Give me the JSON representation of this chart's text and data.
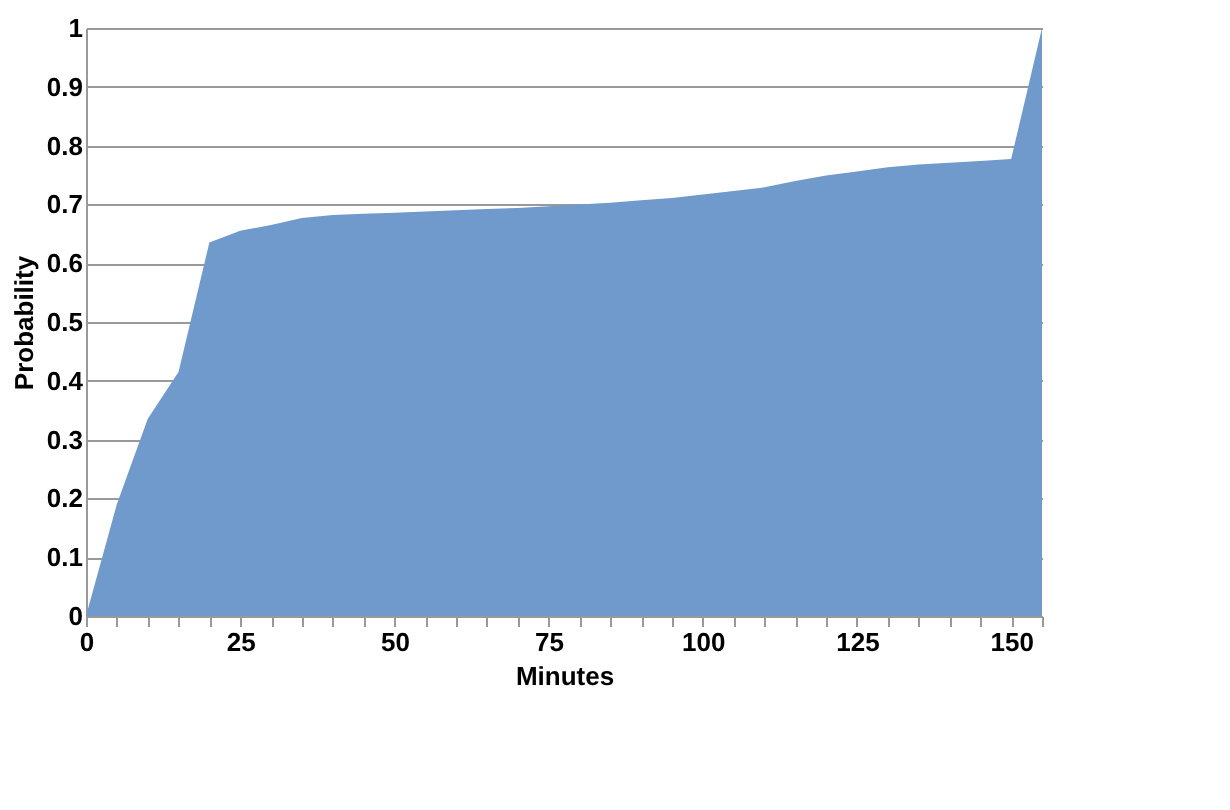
{
  "chart_data": {
    "type": "area",
    "xlabel": "Minutes",
    "ylabel": "Probability",
    "x": [
      0,
      5,
      10,
      15,
      20,
      25,
      30,
      35,
      40,
      45,
      50,
      55,
      60,
      65,
      70,
      75,
      80,
      85,
      90,
      95,
      100,
      105,
      110,
      115,
      120,
      125,
      130,
      135,
      140,
      145,
      150,
      155
    ],
    "series": [
      {
        "color": "#7099cc",
        "values": [
          0,
          0.19,
          0.335,
          0.415,
          0.635,
          0.655,
          0.665,
          0.677,
          0.682,
          0.684,
          0.686,
          0.688,
          0.69,
          0.692,
          0.694,
          0.697,
          0.7,
          0.703,
          0.707,
          0.711,
          0.717,
          0.723,
          0.729,
          0.74,
          0.749,
          0.756,
          0.763,
          0.768,
          0.771,
          0.774,
          0.777,
          1.0
        ]
      }
    ],
    "xlim": [
      0,
      155
    ],
    "xticks": [
      0,
      {
        "value": 5,
        "label": null
      },
      {
        "value": 10,
        "label": null
      },
      {
        "value": 15,
        "label": null
      },
      {
        "value": 20,
        "label": null
      },
      25,
      {
        "value": 30,
        "label": null
      },
      {
        "value": 35,
        "label": null
      },
      {
        "value": 40,
        "label": null
      },
      {
        "value": 45,
        "label": null
      },
      50,
      {
        "value": 55,
        "label": null
      },
      {
        "value": 60,
        "label": null
      },
      {
        "value": 65,
        "label": null
      },
      {
        "value": 70,
        "label": null
      },
      75,
      {
        "value": 80,
        "label": null
      },
      {
        "value": 85,
        "label": null
      },
      {
        "value": 90,
        "label": null
      },
      {
        "value": 95,
        "label": null
      },
      100,
      {
        "value": 105,
        "label": null
      },
      {
        "value": 110,
        "label": null
      },
      {
        "value": 115,
        "label": null
      },
      {
        "value": 120,
        "label": null
      },
      125,
      {
        "value": 130,
        "label": null
      },
      {
        "value": 135,
        "label": null
      },
      {
        "value": 140,
        "label": null
      },
      {
        "value": 145,
        "label": null
      },
      150,
      {
        "value": 155,
        "label": null
      }
    ],
    "ylim": [
      0,
      1
    ],
    "yticks": [
      0,
      0.1,
      0.2,
      0.3,
      0.4,
      0.5,
      0.6,
      0.7,
      0.8,
      0.9,
      1
    ],
    "grid": "y",
    "legend": false
  }
}
